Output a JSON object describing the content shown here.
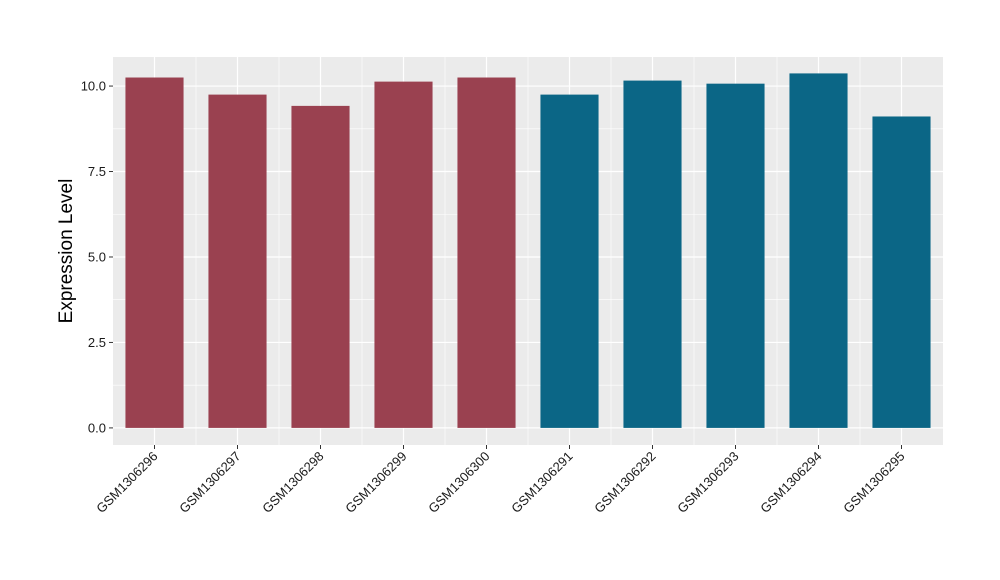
{
  "chart_data": {
    "type": "bar",
    "ylabel": "Expression Level",
    "xlabel": "",
    "ylim": [
      -0.5,
      10.85
    ],
    "yticks": [
      0.0,
      2.5,
      5.0,
      7.5,
      10.0
    ],
    "ytick_labels": [
      "0.0",
      "2.5",
      "5.0",
      "7.5",
      "10.0"
    ],
    "grid": true,
    "legend": "none",
    "categories": [
      "GSM1306296",
      "GSM1306297",
      "GSM1306298",
      "GSM1306299",
      "GSM1306300",
      "GSM1306291",
      "GSM1306292",
      "GSM1306293",
      "GSM1306294",
      "GSM1306295"
    ],
    "values": [
      10.25,
      9.75,
      9.42,
      10.13,
      10.25,
      9.75,
      10.16,
      10.07,
      10.37,
      9.11
    ],
    "bar_colors": [
      "#9a4150",
      "#9a4150",
      "#9a4150",
      "#9a4150",
      "#9a4150",
      "#0b6686",
      "#0b6686",
      "#0b6686",
      "#0b6686",
      "#0b6686"
    ],
    "panel_background": "#ebebeb",
    "grid_color": "#ffffff"
  }
}
